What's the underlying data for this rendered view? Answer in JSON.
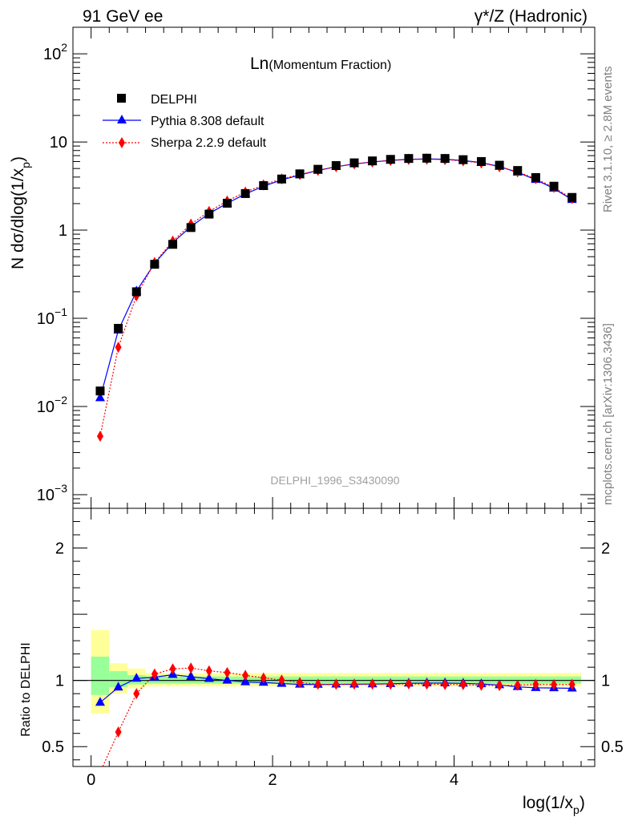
{
  "header": {
    "left": "91 GeV ee",
    "right": "γ*/Z (Hadronic)"
  },
  "side_labels": {
    "rivet": "Rivet 3.1.10, ≥ 2.8M events",
    "mcplots": "mcplots.cern.ch [arXiv:1306.3436]"
  },
  "chart_data": {
    "type": "scatter",
    "title_main": "Ln",
    "title_sub": "(Momentum Fraction)",
    "watermark": "DELPHI_1996_S3430090",
    "xlabel": "log(1/x",
    "xlabel_sub": "p",
    "ylabel_main": "N dσ/dlog(1/x",
    "ylabel_sub": "p",
    "ylabel_ratio": "Ratio to DELPHI",
    "xlim": [
      -0.2,
      5.55
    ],
    "ylim_main": [
      0.0007,
      200
    ],
    "ylim_ratio": [
      0.35,
      2.3
    ],
    "y_scale_main": "log",
    "x_ticks": [
      "0",
      "2",
      "4"
    ],
    "y_ticks_main": [
      {
        "base": "10",
        "exp": "2"
      },
      {
        "base": "10",
        "exp": ""
      },
      {
        "base": "1",
        "exp": ""
      },
      {
        "base": "10",
        "exp": "−1"
      },
      {
        "base": "10",
        "exp": "−2"
      },
      {
        "base": "10",
        "exp": "−3"
      }
    ],
    "y_ticks_ratio": [
      "2",
      "1",
      "0.5"
    ],
    "legend_position": "top-left",
    "x": [
      0.1,
      0.3,
      0.5,
      0.7,
      0.9,
      1.1,
      1.3,
      1.5,
      1.7,
      1.9,
      2.1,
      2.3,
      2.5,
      2.7,
      2.9,
      3.1,
      3.3,
      3.5,
      3.7,
      3.9,
      4.1,
      4.3,
      4.5,
      4.7,
      4.9,
      5.1,
      5.3
    ],
    "bands": [
      {
        "x0": 0.0,
        "x1": 0.2,
        "yellow": [
          0.75,
          1.38
        ],
        "green": [
          0.89,
          1.18
        ]
      },
      {
        "x0": 0.2,
        "x1": 0.4,
        "yellow": [
          0.9,
          1.13
        ],
        "green": [
          0.95,
          1.07
        ]
      },
      {
        "x0": 0.4,
        "x1": 0.6,
        "yellow": [
          0.94,
          1.09
        ],
        "green": [
          0.97,
          1.04
        ]
      },
      {
        "x0": 0.6,
        "x1": 5.4,
        "yellow": [
          0.955,
          1.055
        ],
        "green": [
          0.975,
          1.03
        ]
      }
    ],
    "series": [
      {
        "name": "DELPHI",
        "color": "#000000",
        "marker": "square",
        "values": [
          0.015,
          0.077,
          0.2,
          0.41,
          0.69,
          1.07,
          1.52,
          2.02,
          2.6,
          3.2,
          3.8,
          4.35,
          4.9,
          5.4,
          5.8,
          6.1,
          6.35,
          6.5,
          6.55,
          6.5,
          6.3,
          6.0,
          5.45,
          4.75,
          3.95,
          3.15,
          2.35
        ]
      },
      {
        "name": "Pythia 8.308 default",
        "color": "#0000ff",
        "marker": "triangle",
        "line": "solid",
        "values": [
          0.0125,
          0.073,
          0.203,
          0.42,
          0.72,
          1.1,
          1.54,
          2.02,
          2.57,
          3.15,
          3.71,
          4.22,
          4.75,
          5.24,
          5.63,
          5.93,
          6.19,
          6.36,
          6.42,
          6.37,
          6.16,
          5.84,
          5.26,
          4.52,
          3.73,
          2.97,
          2.21
        ]
      },
      {
        "name": "Sherpa 2.2.9 default",
        "color": "#ff0000",
        "marker": "diamond",
        "line": "dotted",
        "values": [
          0.0046,
          0.047,
          0.18,
          0.43,
          0.75,
          1.17,
          1.63,
          2.14,
          2.7,
          3.26,
          3.81,
          4.28,
          4.76,
          5.24,
          5.64,
          5.93,
          6.17,
          6.33,
          6.37,
          6.3,
          6.1,
          5.78,
          5.24,
          4.58,
          3.83,
          3.05,
          2.28
        ]
      }
    ]
  }
}
